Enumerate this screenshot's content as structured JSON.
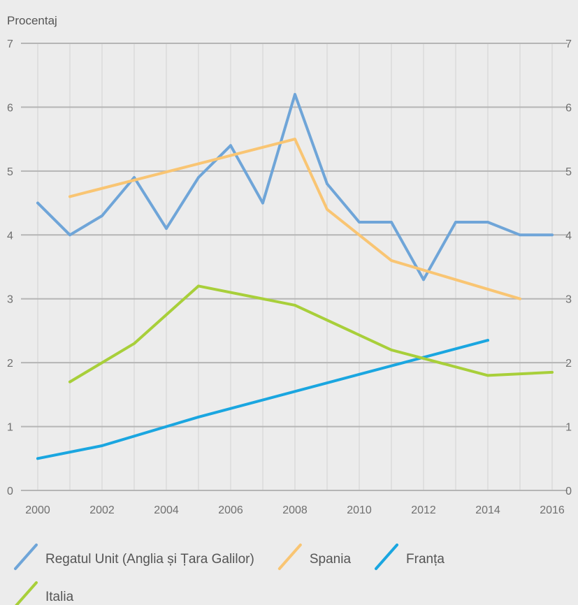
{
  "chart_data": {
    "type": "line",
    "title": "",
    "ylabel": "Procentaj",
    "xlabel": "",
    "ylim": [
      0,
      7
    ],
    "xlim": [
      2000,
      2016
    ],
    "yticks": [
      0,
      1,
      2,
      3,
      4,
      5,
      6,
      7
    ],
    "xticks": [
      2000,
      2002,
      2004,
      2006,
      2008,
      2010,
      2012,
      2014,
      2016
    ],
    "x_minor_grid_every": 1,
    "grid": true,
    "legend_position": "bottom",
    "series": [
      {
        "name": "Regatul Unit (Anglia și Țara Galilor)",
        "color": "#6fa5d8",
        "x": [
          2000,
          2001,
          2002,
          2003,
          2004,
          2005,
          2006,
          2007,
          2008,
          2009,
          2010,
          2011,
          2012,
          2013,
          2014,
          2015,
          2016
        ],
        "values": [
          4.5,
          4.0,
          4.3,
          4.9,
          4.1,
          4.9,
          5.4,
          4.5,
          6.2,
          4.8,
          4.2,
          4.2,
          3.3,
          4.2,
          4.2,
          4.0,
          4.0
        ]
      },
      {
        "name": "Spania",
        "color": "#f9c573",
        "x": [
          2001,
          2008,
          2009,
          2011,
          2015
        ],
        "values": [
          4.6,
          5.5,
          4.4,
          3.6,
          3.0
        ]
      },
      {
        "name": "Franța",
        "color": "#1aa6e0",
        "x": [
          2000,
          2002,
          2005,
          2014
        ],
        "values": [
          0.5,
          0.7,
          1.15,
          2.35
        ]
      },
      {
        "name": "Italia",
        "color": "#a8cf3a",
        "x": [
          2001,
          2003,
          2005,
          2008,
          2011,
          2014,
          2016
        ],
        "values": [
          1.7,
          2.3,
          3.2,
          2.9,
          2.2,
          1.8,
          1.85
        ]
      }
    ]
  },
  "legend_rows": [
    [
      0,
      1,
      2
    ],
    [
      3
    ]
  ]
}
